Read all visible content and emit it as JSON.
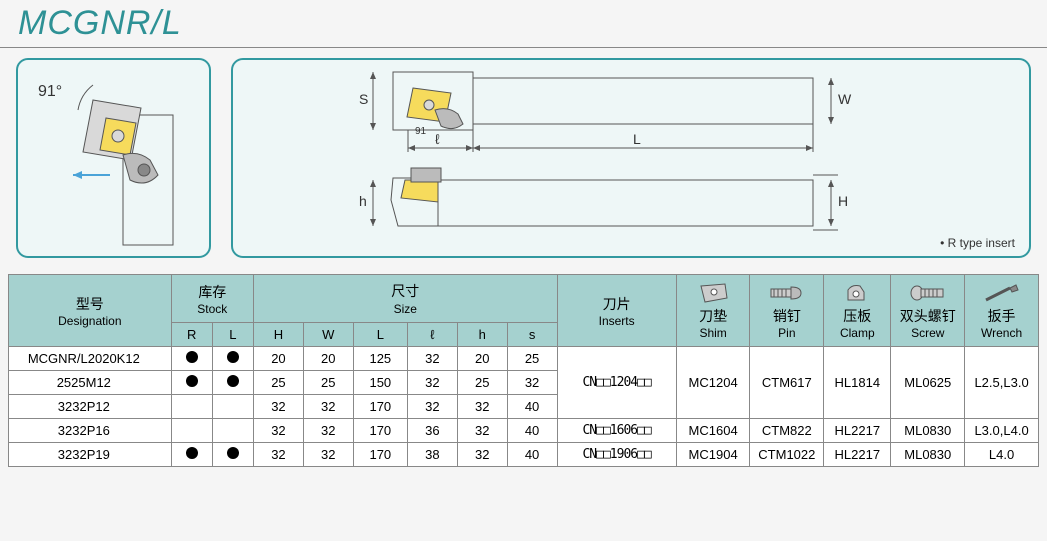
{
  "title": "MCGNR/L",
  "angle_label": "91°",
  "r_type_note": "• R type insert",
  "dims": {
    "S": "S",
    "W": "W",
    "l": "ℓ",
    "L": "L",
    "h": "h",
    "H": "H",
    "angle": "91"
  },
  "colors": {
    "accent": "#3299a0",
    "header_bg": "#a5d1cf",
    "panel_bg": "#eef7f7",
    "border": "#888888",
    "insert_fill": "#f6db5c",
    "diagram_line": "#555555"
  },
  "table": {
    "headers": {
      "designation": {
        "cn": "型号",
        "en": "Designation"
      },
      "stock": {
        "cn": "库存",
        "en": "Stock",
        "sub": [
          "R",
          "L"
        ]
      },
      "size": {
        "cn": "尺寸",
        "en": "Size",
        "sub": [
          "H",
          "W",
          "L",
          "ℓ",
          "h",
          "s"
        ]
      },
      "inserts": {
        "cn": "刀片",
        "en": "Inserts"
      },
      "shim": {
        "cn": "刀垫",
        "en": "Shim"
      },
      "pin": {
        "cn": "销钉",
        "en": "Pin"
      },
      "clamp": {
        "cn": "压板",
        "en": "Clamp"
      },
      "screw": {
        "cn": "双头螺钉",
        "en": "Screw"
      },
      "wrench": {
        "cn": "扳手",
        "en": "Wrench"
      }
    },
    "rows": [
      {
        "designation": "MCGNR/L2020K12",
        "R": true,
        "L": true,
        "H": "20",
        "W": "20",
        "Ll": "125",
        "ell": "32",
        "h": "20",
        "s": "25"
      },
      {
        "designation": "2525M12",
        "R": true,
        "L": true,
        "H": "25",
        "W": "25",
        "Ll": "150",
        "ell": "32",
        "h": "25",
        "s": "32"
      },
      {
        "designation": "3232P12",
        "R": false,
        "L": false,
        "H": "32",
        "W": "32",
        "Ll": "170",
        "ell": "32",
        "h": "32",
        "s": "40"
      },
      {
        "designation": "3232P16",
        "R": false,
        "L": false,
        "H": "32",
        "W": "32",
        "Ll": "170",
        "ell": "36",
        "h": "32",
        "s": "40"
      },
      {
        "designation": "3232P19",
        "R": true,
        "L": true,
        "H": "32",
        "W": "32",
        "Ll": "170",
        "ell": "38",
        "h": "32",
        "s": "40"
      }
    ],
    "groups": [
      {
        "span": 3,
        "inserts": "CN□□1204□□",
        "shim": "MC1204",
        "pin": "CTM617",
        "clamp": "HL1814",
        "screw": "ML0625",
        "wrench": "L2.5,L3.0"
      },
      {
        "span": 1,
        "inserts": "CN□□1606□□",
        "shim": "MC1604",
        "pin": "CTM822",
        "clamp": "HL2217",
        "screw": "ML0830",
        "wrench": "L3.0,L4.0"
      },
      {
        "span": 1,
        "inserts": "CN□□1906□□",
        "shim": "MC1904",
        "pin": "CTM1022",
        "clamp": "HL2217",
        "screw": "ML0830",
        "wrench": "L4.0"
      }
    ]
  }
}
